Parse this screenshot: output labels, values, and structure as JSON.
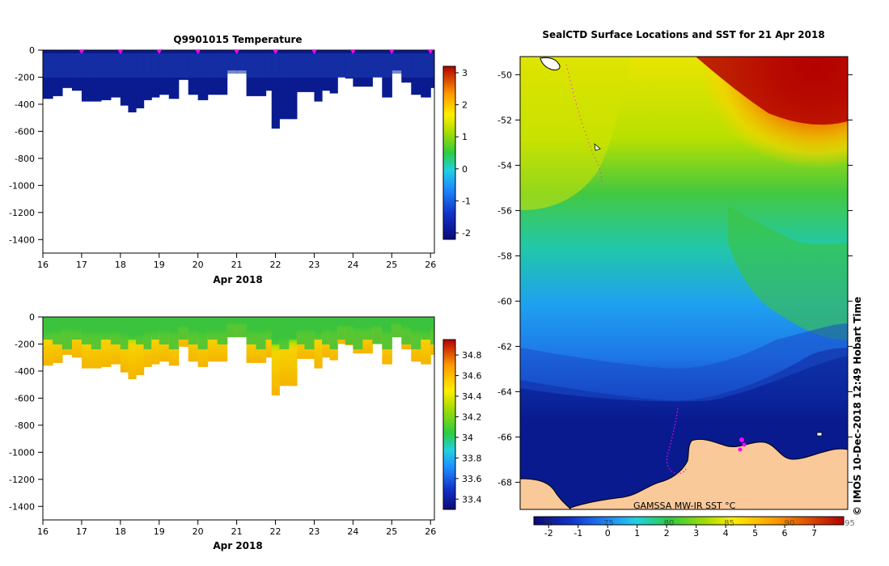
{
  "chart_data": [
    {
      "id": "temperature",
      "type": "heatmap",
      "title": "Q9901015  Temperature",
      "xlabel": "Apr 2018",
      "ylabel": "",
      "xlim": [
        16,
        26.1
      ],
      "ylim": [
        -1500,
        0
      ],
      "x_ticks": [
        16,
        17,
        18,
        19,
        20,
        21,
        22,
        23,
        24,
        25,
        26
      ],
      "y_ticks": [
        0,
        -200,
        -400,
        -600,
        -800,
        -1000,
        -1200,
        -1400
      ],
      "profile_times": [
        16.0,
        16.25,
        16.5,
        16.75,
        17.0,
        17.25,
        17.5,
        17.75,
        18.0,
        18.2,
        18.4,
        18.6,
        18.8,
        19.0,
        19.25,
        19.5,
        19.75,
        20.0,
        20.25,
        20.5,
        20.75,
        21.0,
        21.25,
        21.5,
        21.75,
        21.9,
        22.1,
        22.35,
        22.55,
        22.75,
        23.0,
        23.2,
        23.4,
        23.6,
        23.8,
        24.0,
        24.25,
        24.5,
        24.75,
        25.0,
        25.25,
        25.5,
        25.75,
        26.0
      ],
      "profile_depths": [
        -360,
        -340,
        -280,
        -300,
        -380,
        -380,
        -370,
        -350,
        -410,
        -460,
        -430,
        -370,
        -350,
        -330,
        -360,
        -220,
        -330,
        -370,
        -330,
        -330,
        -150,
        -150,
        -340,
        -340,
        -300,
        -580,
        -510,
        -510,
        -310,
        -310,
        -380,
        -300,
        -320,
        -200,
        -210,
        -270,
        -270,
        -200,
        -350,
        -150,
        -240,
        -330,
        -350,
        -280
      ],
      "surface_markers": [
        17,
        18,
        19,
        20,
        21,
        22,
        23,
        24,
        25,
        26
      ],
      "colorbar": {
        "ticks": [
          3,
          2,
          1,
          0,
          -1,
          -2
        ],
        "range": [
          -2.2,
          3.2
        ]
      },
      "colors": {
        "fill": "#0a1b8f",
        "upper": "#1a3bb0",
        "marker": "#ff00ff"
      }
    },
    {
      "id": "salinity",
      "type": "heatmap",
      "title": "",
      "xlabel": "Apr 2018",
      "ylabel": "",
      "xlim": [
        16,
        26.1
      ],
      "ylim": [
        -1500,
        0
      ],
      "x_ticks": [
        16,
        17,
        18,
        19,
        20,
        21,
        22,
        23,
        24,
        25,
        26
      ],
      "y_ticks": [
        0,
        -200,
        -400,
        -600,
        -800,
        -1000,
        -1200,
        -1400
      ],
      "colorbar": {
        "ticks": [
          34.8,
          34.6,
          34.4,
          34.2,
          34,
          33.8,
          33.6,
          33.4
        ],
        "range": [
          33.3,
          34.95
        ]
      },
      "colors": {
        "surface": "#3cc33c",
        "mid": "#f6d000",
        "deep": "#f5b800"
      }
    },
    {
      "id": "sst_map",
      "type": "heatmap",
      "title": "SealCTD Surface Locations and SST for 21 Apr 2018",
      "y_ticks": [
        -50,
        -52,
        -54,
        -56,
        -58,
        -60,
        -62,
        -64,
        -66,
        -68
      ],
      "ylim": [
        -69.2,
        -49.2
      ],
      "colorbar": {
        "ticks": [
          -2,
          -1,
          0,
          1,
          2,
          3,
          4,
          5,
          6,
          7
        ],
        "range": [
          -2.5,
          8.0
        ],
        "overlay_ticks": [
          "70",
          "75",
          "80",
          "85",
          "90",
          "95"
        ]
      },
      "source_label": "GAMSSA MW-IR SST °C",
      "credit": "© IMOS 10-Dec-2018 12:49 Hobart Time",
      "colors": {
        "land": "#fac99a",
        "track": "#ff00ff"
      }
    }
  ]
}
